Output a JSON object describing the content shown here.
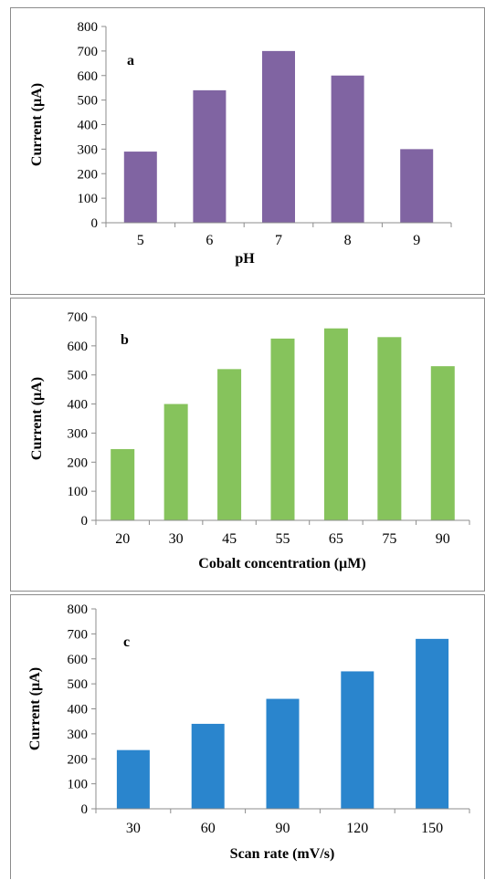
{
  "chart_data": [
    {
      "type": "bar",
      "panel_label": "a",
      "categories": [
        "5",
        "6",
        "7",
        "8",
        "9"
      ],
      "values": [
        290,
        540,
        700,
        600,
        300
      ],
      "xlabel": "pH",
      "ylabel": "Current (µA)",
      "ylim": [
        0,
        800
      ],
      "yticks": [
        0,
        100,
        200,
        300,
        400,
        500,
        600,
        700,
        800
      ],
      "color": "#8064a2",
      "grid": false,
      "legend": "none"
    },
    {
      "type": "bar",
      "panel_label": "b",
      "categories": [
        "20",
        "30",
        "45",
        "55",
        "65",
        "75",
        "90"
      ],
      "values": [
        245,
        400,
        520,
        625,
        660,
        630,
        530
      ],
      "xlabel": "Cobalt concentration (µM)",
      "ylabel": "Current (µA)",
      "ylim": [
        0,
        700
      ],
      "yticks": [
        0,
        100,
        200,
        300,
        400,
        500,
        600,
        700
      ],
      "color": "#86c35c",
      "grid": false,
      "legend": "none"
    },
    {
      "type": "bar",
      "panel_label": "c",
      "categories": [
        "30",
        "60",
        "90",
        "120",
        "150"
      ],
      "values": [
        235,
        340,
        440,
        550,
        680
      ],
      "xlabel": "Scan rate (mV/s)",
      "ylabel": "Current (µA)",
      "ylim": [
        0,
        800
      ],
      "yticks": [
        0,
        100,
        200,
        300,
        400,
        500,
        600,
        700,
        800
      ],
      "color": "#2a85cd",
      "grid": false,
      "legend": "none"
    }
  ]
}
